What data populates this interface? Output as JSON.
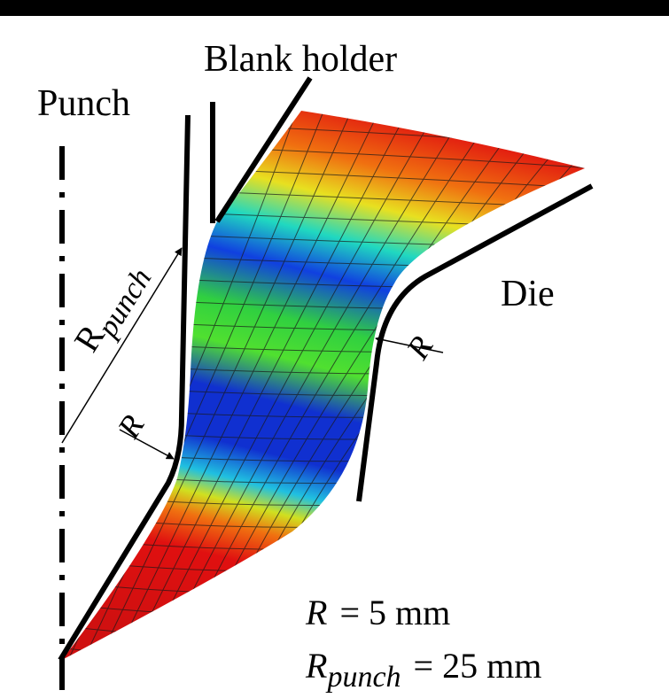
{
  "labels": {
    "blank_holder": "Blank holder",
    "punch": "Punch",
    "die": "Die",
    "punch_radius": {
      "symbol": "R",
      "subscript": "punch"
    },
    "punch_fillet_radius": "R",
    "die_fillet_radius": "R"
  },
  "equations": [
    {
      "symbol": "R",
      "subscript": null,
      "rhs": "= 5 mm"
    },
    {
      "symbol": "R",
      "subscript": "punch",
      "rhs": "= 25 mm"
    }
  ]
}
